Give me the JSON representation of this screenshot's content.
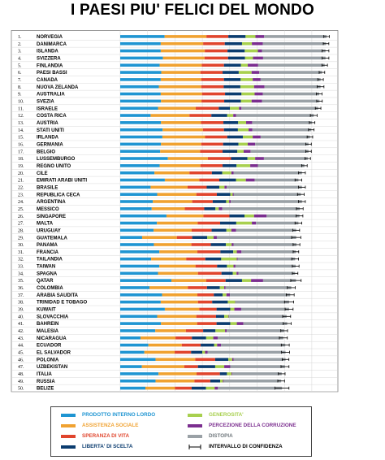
{
  "title": "I PAESI PIU' FELICI DEL MONDO",
  "chart_data": {
    "type": "bar",
    "stacked": true,
    "orientation": "horizontal",
    "grid": true,
    "legend_position": "bottom",
    "components": [
      {
        "key": "gdp",
        "name": "PRODOTTO INTERNO LORDO",
        "color": "#1f95d2"
      },
      {
        "key": "social",
        "name": "ASSISTENZA SOCIALE",
        "color": "#f0a231"
      },
      {
        "key": "life",
        "name": "SPERANZA DI VITA",
        "color": "#e0452d"
      },
      {
        "key": "freedom",
        "name": "LIBERTA' DI SCELTA",
        "color": "#0b3c6f"
      },
      {
        "key": "generosity",
        "name": "GENEROSITA'",
        "color": "#a8d04f"
      },
      {
        "key": "corruption",
        "name": "PERCEZIONE DELLA CORRUZIONE",
        "color": "#7b2e8f"
      },
      {
        "key": "dystopia",
        "name": "DISTOPIA",
        "color": "#9aa1a6"
      },
      {
        "key": "ci",
        "name": "INTERVALLO DI CONFIDENZA",
        "color": "#000000"
      }
    ],
    "countries": [
      {
        "rank": "1.",
        "name": "NORVEGIA",
        "values": [
          1.62,
          1.53,
          0.8,
          0.63,
          0.36,
          0.32,
          2.28
        ],
        "ci": 0.03
      },
      {
        "rank": "2.",
        "name": "DANIMARCA",
        "values": [
          1.48,
          1.55,
          0.79,
          0.63,
          0.36,
          0.4,
          2.31
        ],
        "ci": 0.03
      },
      {
        "rank": "3.",
        "name": "ISLANDA",
        "values": [
          1.48,
          1.61,
          0.83,
          0.63,
          0.48,
          0.15,
          2.32
        ],
        "ci": 0.04
      },
      {
        "rank": "4.",
        "name": "SVIZZERA",
        "values": [
          1.56,
          1.52,
          0.86,
          0.62,
          0.29,
          0.37,
          2.28
        ],
        "ci": 0.04
      },
      {
        "rank": "5.",
        "name": "FINLANDIA",
        "values": [
          1.44,
          1.54,
          0.81,
          0.62,
          0.25,
          0.38,
          2.43
        ],
        "ci": 0.03
      },
      {
        "rank": "6.",
        "name": "PAESI BASSI",
        "values": [
          1.5,
          1.43,
          0.81,
          0.59,
          0.47,
          0.28,
          2.29
        ],
        "ci": 0.03
      },
      {
        "rank": "7.",
        "name": "CANADA",
        "values": [
          1.48,
          1.48,
          0.83,
          0.61,
          0.44,
          0.29,
          2.19
        ],
        "ci": 0.03
      },
      {
        "rank": "8.",
        "name": "NUOVA ZELANDA",
        "values": [
          1.41,
          1.55,
          0.82,
          0.61,
          0.5,
          0.38,
          2.05
        ],
        "ci": 0.04
      },
      {
        "rank": "9.",
        "name": "AUSTRALIA",
        "values": [
          1.48,
          1.51,
          0.84,
          0.6,
          0.48,
          0.3,
          2.06
        ],
        "ci": 0.03
      },
      {
        "rank": "10.",
        "name": "SVEZIA",
        "values": [
          1.49,
          1.48,
          0.83,
          0.61,
          0.39,
          0.38,
          2.1
        ],
        "ci": 0.03
      },
      {
        "rank": "11.",
        "name": "ISRAELE",
        "values": [
          1.38,
          1.38,
          0.84,
          0.41,
          0.33,
          0.09,
          2.8
        ],
        "ci": 0.03
      },
      {
        "rank": "12.",
        "name": "COSTA RICA",
        "values": [
          1.11,
          1.42,
          0.8,
          0.58,
          0.22,
          0.1,
          2.84
        ],
        "ci": 0.04
      },
      {
        "rank": "13.",
        "name": "AUSTRIA",
        "values": [
          1.49,
          1.46,
          0.82,
          0.54,
          0.29,
          0.22,
          2.19
        ],
        "ci": 0.03
      },
      {
        "rank": "14.",
        "name": "STATI UNITI",
        "values": [
          1.55,
          1.47,
          0.77,
          0.51,
          0.39,
          0.14,
          2.15
        ],
        "ci": 0.03
      },
      {
        "rank": "15.",
        "name": "IRLANDA",
        "values": [
          1.54,
          1.56,
          0.81,
          0.57,
          0.36,
          0.29,
          1.8
        ],
        "ci": 0.03
      },
      {
        "rank": "16.",
        "name": "GERMANIA",
        "values": [
          1.49,
          1.47,
          0.8,
          0.56,
          0.34,
          0.27,
          1.95
        ],
        "ci": 0.03
      },
      {
        "rank": "17.",
        "name": "BELGIO",
        "values": [
          1.46,
          1.46,
          0.82,
          0.54,
          0.23,
          0.25,
          2.12
        ],
        "ci": 0.03
      },
      {
        "rank": "18.",
        "name": "LUSSEMBURGO",
        "values": [
          1.74,
          1.46,
          0.85,
          0.6,
          0.28,
          0.32,
          1.6
        ],
        "ci": 0.03
      },
      {
        "rank": "19.",
        "name": "REGNO UNITO",
        "values": [
          1.44,
          1.49,
          0.81,
          0.51,
          0.5,
          0.28,
          1.7
        ],
        "ci": 0.03
      },
      {
        "rank": "20.",
        "name": "CILE",
        "values": [
          1.25,
          1.28,
          0.82,
          0.38,
          0.33,
          0.08,
          2.5
        ],
        "ci": 0.04
      },
      {
        "rank": "21.",
        "name": "EMIRATI ARABI UNITI",
        "values": [
          1.63,
          1.26,
          0.73,
          0.61,
          0.36,
          0.32,
          1.6
        ],
        "ci": 0.04
      },
      {
        "rank": "22.",
        "name": "BRASILE",
        "values": [
          1.11,
          1.35,
          0.7,
          0.46,
          0.19,
          0.08,
          2.75
        ],
        "ci": 0.04
      },
      {
        "rank": "23.",
        "name": "REPUBLICA CECA",
        "values": [
          1.35,
          1.43,
          0.75,
          0.49,
          0.09,
          0.04,
          2.45
        ],
        "ci": 0.04
      },
      {
        "rank": "24.",
        "name": "ARGENTINA",
        "values": [
          1.19,
          1.44,
          0.75,
          0.49,
          0.11,
          0.06,
          2.6
        ],
        "ci": 0.04
      },
      {
        "rank": "25.",
        "name": "MESSICO",
        "values": [
          1.15,
          1.21,
          0.71,
          0.41,
          0.12,
          0.13,
          2.83
        ],
        "ci": 0.04
      },
      {
        "rank": "26.",
        "name": "SINGAPORE",
        "values": [
          1.69,
          1.35,
          0.95,
          0.55,
          0.35,
          0.46,
          1.2
        ],
        "ci": 0.04
      },
      {
        "rank": "27.",
        "name": "MALTA",
        "values": [
          1.34,
          1.49,
          0.82,
          0.59,
          0.57,
          0.15,
          1.55
        ],
        "ci": 0.04
      },
      {
        "rank": "28.",
        "name": "URUGUAY",
        "values": [
          1.22,
          1.39,
          0.73,
          0.54,
          0.18,
          0.17,
          2.2
        ],
        "ci": 0.04
      },
      {
        "rank": "29.",
        "name": "GUATEMALA",
        "values": [
          0.8,
          1.27,
          0.56,
          0.55,
          0.23,
          0.12,
          2.9
        ],
        "ci": 0.06
      },
      {
        "rank": "30.",
        "name": "PANAMA",
        "values": [
          1.23,
          1.37,
          0.71,
          0.55,
          0.21,
          0.07,
          2.3
        ],
        "ci": 0.04
      },
      {
        "rank": "31.",
        "name": "FRANCIA",
        "values": [
          1.43,
          1.39,
          0.84,
          0.47,
          0.13,
          0.17,
          1.99
        ],
        "ci": 0.03
      },
      {
        "rank": "32.",
        "name": "TAILANDIA",
        "values": [
          1.13,
          1.28,
          0.7,
          0.58,
          0.57,
          0.03,
          2.1
        ],
        "ci": 0.04
      },
      {
        "rank": "33.",
        "name": "TAIWAN",
        "values": [
          1.43,
          1.32,
          0.79,
          0.36,
          0.24,
          0.07,
          2.2
        ],
        "ci": 0.04
      },
      {
        "rank": "34.",
        "name": "SPAGNA",
        "values": [
          1.38,
          1.46,
          0.86,
          0.41,
          0.14,
          0.07,
          2.07
        ],
        "ci": 0.03
      },
      {
        "rank": "35.",
        "name": "QATAR",
        "values": [
          1.87,
          1.27,
          0.71,
          0.6,
          0.33,
          0.44,
          1.2
        ],
        "ci": 0.07
      },
      {
        "rank": "36.",
        "name": "COLOMBIA",
        "values": [
          1.07,
          1.4,
          0.7,
          0.47,
          0.16,
          0.05,
          2.4
        ],
        "ci": 0.05
      },
      {
        "rank": "37.",
        "name": "ARABIA SAUDITA",
        "values": [
          1.53,
          1.29,
          0.6,
          0.32,
          0.14,
          0.13,
          2.2
        ],
        "ci": 0.05
      },
      {
        "rank": "38.",
        "name": "TRINIDAD E TOBAGO",
        "values": [
          1.48,
          1.36,
          0.52,
          0.57,
          0.27,
          0.01,
          1.96
        ],
        "ci": 0.06
      },
      {
        "rank": "39.",
        "name": "KUWAIT",
        "values": [
          1.63,
          1.26,
          0.63,
          0.5,
          0.15,
          0.25,
          1.75
        ],
        "ci": 0.05
      },
      {
        "rank": "40.",
        "name": "SLOVACCHIA",
        "values": [
          1.35,
          1.43,
          0.72,
          0.3,
          0.16,
          0.02,
          2.1
        ],
        "ci": 0.05
      },
      {
        "rank": "41.",
        "name": "BAHREIN",
        "values": [
          1.49,
          1.32,
          0.71,
          0.5,
          0.24,
          0.24,
          1.6
        ],
        "ci": 0.05
      },
      {
        "rank": "42.",
        "name": "MALESIA",
        "values": [
          1.28,
          1.12,
          0.63,
          0.45,
          0.35,
          0.06,
          2.1
        ],
        "ci": 0.04
      },
      {
        "rank": "43.",
        "name": "NICARAGUA",
        "values": [
          0.74,
          1.28,
          0.6,
          0.52,
          0.26,
          0.16,
          2.4
        ],
        "ci": 0.05
      },
      {
        "rank": "44.",
        "name": "ECUADOR",
        "values": [
          1.03,
          1.22,
          0.69,
          0.49,
          0.11,
          0.14,
          2.35
        ],
        "ci": 0.05
      },
      {
        "rank": "45.",
        "name": "EL SALVADOR",
        "values": [
          0.88,
          1.11,
          0.6,
          0.41,
          0.1,
          0.09,
          2.85
        ],
        "ci": 0.05
      },
      {
        "rank": "46.",
        "name": "POLONIA",
        "values": [
          1.29,
          1.45,
          0.73,
          0.48,
          0.14,
          0.05,
          1.9
        ],
        "ci": 0.04
      },
      {
        "rank": "47.",
        "name": "UZBEKISTAN",
        "values": [
          0.79,
          1.55,
          0.5,
          0.63,
          0.33,
          0.22,
          2.0
        ],
        "ci": 0.05
      },
      {
        "rank": "48.",
        "name": "ITALIA",
        "values": [
          1.4,
          1.39,
          0.85,
          0.26,
          0.17,
          0.03,
          1.8
        ],
        "ci": 0.04
      },
      {
        "rank": "49.",
        "name": "RUSSIA",
        "values": [
          1.29,
          1.42,
          0.58,
          0.36,
          0.1,
          0.03,
          2.1
        ],
        "ci": 0.04
      },
      {
        "rank": "50.",
        "name": "BELIZE",
        "values": [
          0.92,
          1.08,
          0.61,
          0.52,
          0.32,
          0.12,
          2.34
        ],
        "ci": 0.1
      }
    ]
  }
}
